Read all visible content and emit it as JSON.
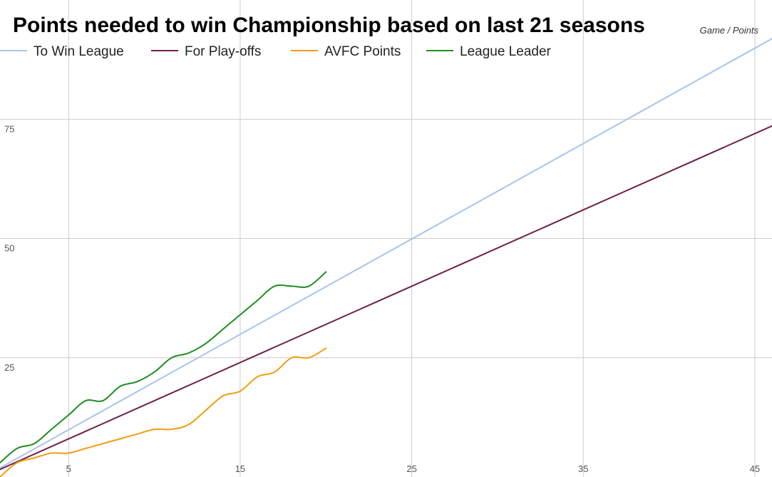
{
  "chart_data": {
    "type": "line",
    "title": "Points needed to win Championship based on last 21 seasons",
    "axis_note": "Game / Points",
    "xlim": [
      1,
      46
    ],
    "ylim": [
      0,
      100
    ],
    "x_ticks": [
      5,
      15,
      25,
      35,
      45
    ],
    "y_ticks": [
      25,
      50,
      75
    ],
    "grid": true,
    "legend_position": "top-left",
    "series": [
      {
        "name": "To Win League",
        "color": "#a8c4ec",
        "smooth": false,
        "x": [
          1,
          46
        ],
        "y": [
          1.9,
          91.9
        ]
      },
      {
        "name": "For Play-offs",
        "color": "#6d1f4a",
        "smooth": false,
        "x": [
          1,
          46
        ],
        "y": [
          1.6,
          73.6
        ]
      },
      {
        "name": "AVFC Points",
        "color": "#f39c12",
        "smooth": true,
        "x": [
          1,
          2,
          3,
          4,
          5,
          6,
          7,
          8,
          9,
          10,
          11,
          12,
          13,
          14,
          15,
          16,
          17,
          18,
          19,
          20
        ],
        "y": [
          0,
          3,
          4,
          5,
          5,
          6,
          7,
          8,
          9,
          10,
          10,
          11,
          14,
          17,
          18,
          21,
          22,
          25,
          25,
          27
        ]
      },
      {
        "name": "League Leader",
        "color": "#1e8e1e",
        "smooth": true,
        "x": [
          1,
          2,
          3,
          4,
          5,
          6,
          7,
          8,
          9,
          10,
          11,
          12,
          13,
          14,
          15,
          16,
          17,
          18,
          19,
          20
        ],
        "y": [
          3,
          6,
          7,
          10,
          13,
          16,
          16,
          19,
          20,
          22,
          25,
          26,
          28,
          31,
          34,
          37,
          40,
          40,
          40,
          43
        ]
      }
    ]
  }
}
